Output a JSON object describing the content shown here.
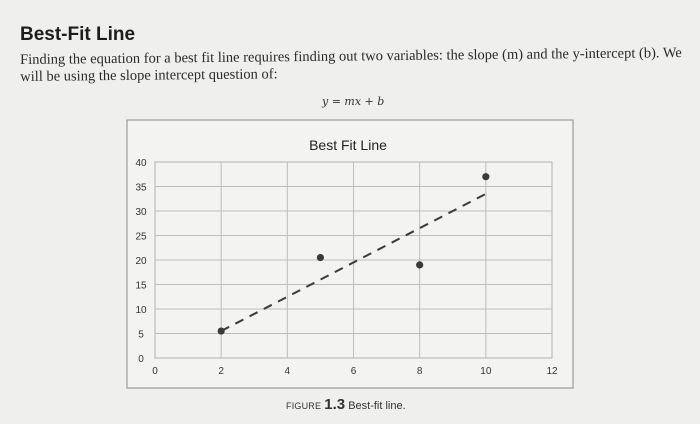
{
  "page": {
    "heading": "Best-Fit Line",
    "intro": "Finding the equation for a best fit line requires finding out two variables: the slope (m) and the y-intercept (b). We will be using the slope intercept question of:",
    "equation": "y = mx + b"
  },
  "caption": {
    "prefix": "FIGURE",
    "number": "1.3",
    "text": "Best-fit line."
  },
  "chart_data": {
    "type": "scatter",
    "title": "Best Fit Line",
    "xlabel": "",
    "ylabel": "",
    "xlim": [
      0,
      12
    ],
    "ylim": [
      0,
      40
    ],
    "x_ticks": [
      0,
      2,
      4,
      6,
      8,
      10,
      12
    ],
    "y_ticks": [
      0,
      5,
      10,
      15,
      20,
      25,
      30,
      35,
      40
    ],
    "grid": true,
    "legend": "none",
    "points": [
      {
        "x": 2,
        "y": 5.5
      },
      {
        "x": 5,
        "y": 20.5
      },
      {
        "x": 8,
        "y": 19
      },
      {
        "x": 10,
        "y": 37
      }
    ],
    "fit_line": {
      "x": [
        2,
        10
      ],
      "y": [
        5.5,
        33.5
      ],
      "style": "dashed"
    },
    "colors": {
      "point": "#3a3a3a",
      "line": "#3a3a3a",
      "grid": "#bcbcbc",
      "frame": "#9a9a9a"
    }
  }
}
